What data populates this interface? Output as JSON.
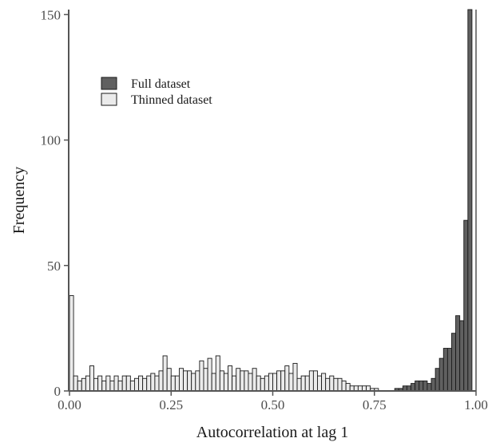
{
  "chart_data": {
    "type": "histogram",
    "title": "",
    "xlabel": "Autocorrelation at lag 1",
    "ylabel": "Frequency",
    "xlim": [
      0,
      1
    ],
    "ylim": [
      0,
      152
    ],
    "x_ticks": [
      {
        "value": 0,
        "label": "0.00"
      },
      {
        "value": 0.25,
        "label": "0.25"
      },
      {
        "value": 0.5,
        "label": "0.50"
      },
      {
        "value": 0.75,
        "label": "0.75"
      },
      {
        "value": 1,
        "label": "1.00"
      }
    ],
    "y_ticks": [
      {
        "value": 0,
        "label": "0"
      },
      {
        "value": 50,
        "label": "50"
      },
      {
        "value": 100,
        "label": "100"
      },
      {
        "value": 150,
        "label": "150"
      }
    ],
    "bin_width": 0.01,
    "bin_start": 0,
    "grid": false,
    "legend_position": "top-left",
    "series": [
      {
        "name": "Full dataset",
        "color": "#606060",
        "values": [
          0,
          0,
          0,
          0,
          0,
          0,
          0,
          0,
          0,
          0,
          0,
          0,
          0,
          0,
          0,
          0,
          0,
          0,
          0,
          0,
          0,
          0,
          0,
          0,
          0,
          0,
          0,
          0,
          0,
          0,
          0,
          0,
          0,
          0,
          0,
          0,
          0,
          0,
          0,
          0,
          0,
          0,
          0,
          0,
          0,
          0,
          0,
          0,
          0,
          0,
          0,
          0,
          0,
          0,
          0,
          0,
          0,
          0,
          0,
          0,
          0,
          0,
          0,
          0,
          0,
          0,
          0,
          0,
          0,
          0,
          0,
          0,
          0,
          0,
          0,
          0,
          0,
          0,
          0,
          0,
          1,
          1,
          2,
          2,
          3,
          4,
          4,
          4,
          3,
          5,
          9,
          13,
          17,
          17,
          23,
          30,
          28,
          68,
          155
        ]
      },
      {
        "name": "Thinned dataset",
        "color": "#ebebeb",
        "values": [
          38,
          6,
          4,
          5,
          6,
          10,
          5,
          6,
          4,
          6,
          4,
          6,
          4,
          6,
          6,
          4,
          5,
          6,
          5,
          6,
          7,
          6,
          8,
          14,
          9,
          6,
          6,
          9,
          8,
          8,
          7,
          8,
          12,
          9,
          13,
          7,
          14,
          8,
          7,
          10,
          6,
          9,
          8,
          8,
          7,
          9,
          6,
          5,
          6,
          7,
          7,
          8,
          8,
          10,
          7,
          11,
          5,
          6,
          6,
          8,
          8,
          6,
          7,
          5,
          6,
          5,
          5,
          4,
          3,
          2,
          2,
          2,
          2,
          2,
          1,
          1,
          0,
          0,
          0,
          0,
          0,
          0,
          0,
          0,
          0,
          0,
          0,
          0,
          0,
          0,
          0,
          0,
          0,
          0,
          0,
          0,
          0,
          0,
          0
        ]
      }
    ]
  }
}
